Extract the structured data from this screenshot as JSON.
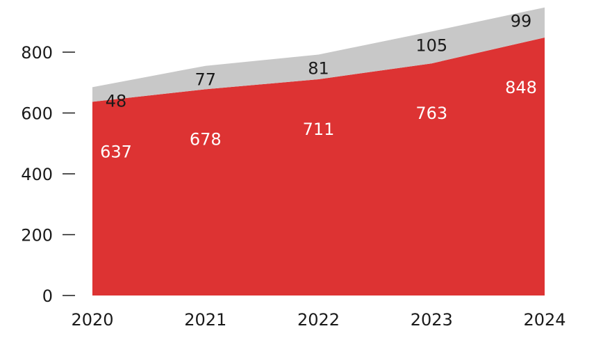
{
  "chart_data": {
    "type": "area",
    "stacked": true,
    "x": [
      "2020",
      "2021",
      "2022",
      "2023",
      "2024"
    ],
    "series": [
      {
        "values": [
          637,
          678,
          711,
          763,
          848
        ],
        "color": "#dd3333",
        "label_color": "#ffffff"
      },
      {
        "values": [
          48,
          77,
          81,
          105,
          99
        ],
        "color": "#c8c8c8",
        "label_color": "#1a1a1a"
      }
    ],
    "ylim": [
      0,
      950
    ],
    "yticks": [
      0,
      200,
      400,
      600,
      800
    ],
    "grid": false,
    "legend": "none"
  }
}
